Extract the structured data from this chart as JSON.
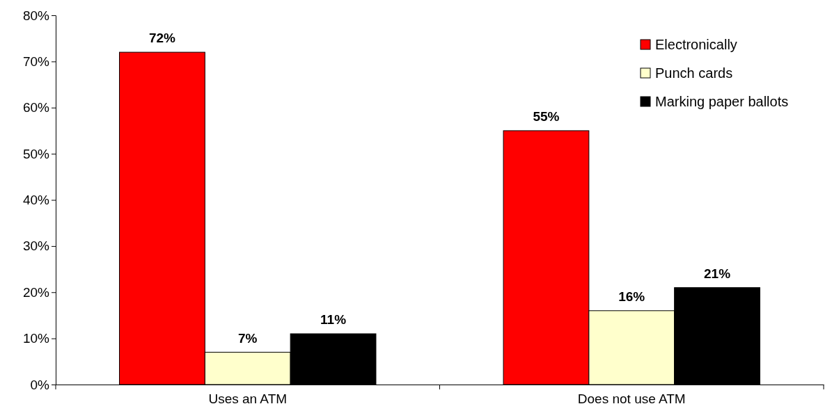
{
  "chart_data": {
    "type": "bar",
    "categories": [
      "Uses an ATM",
      "Does not use ATM"
    ],
    "series": [
      {
        "name": "Electronically",
        "color": "#ff0000",
        "values": [
          72,
          55
        ],
        "value_labels": [
          "72%",
          "55%"
        ]
      },
      {
        "name": "Punch cards",
        "color": "#ffffcc",
        "values": [
          7,
          16
        ],
        "value_labels": [
          "7%",
          "16%"
        ]
      },
      {
        "name": "Marking paper ballots",
        "color": "#000000",
        "values": [
          11,
          21
        ],
        "value_labels": [
          "11%",
          "21%"
        ]
      }
    ],
    "ylim": [
      0,
      80
    ],
    "yticks": [
      {
        "value": 0,
        "label": "0%"
      },
      {
        "value": 10,
        "label": "10%"
      },
      {
        "value": 20,
        "label": "20%"
      },
      {
        "value": 30,
        "label": "30%"
      },
      {
        "value": 40,
        "label": "40%"
      },
      {
        "value": 50,
        "label": "50%"
      },
      {
        "value": 60,
        "label": "60%"
      },
      {
        "value": 70,
        "label": "70%"
      },
      {
        "value": 80,
        "label": "80%"
      }
    ],
    "grid": false,
    "legend": "top right"
  }
}
